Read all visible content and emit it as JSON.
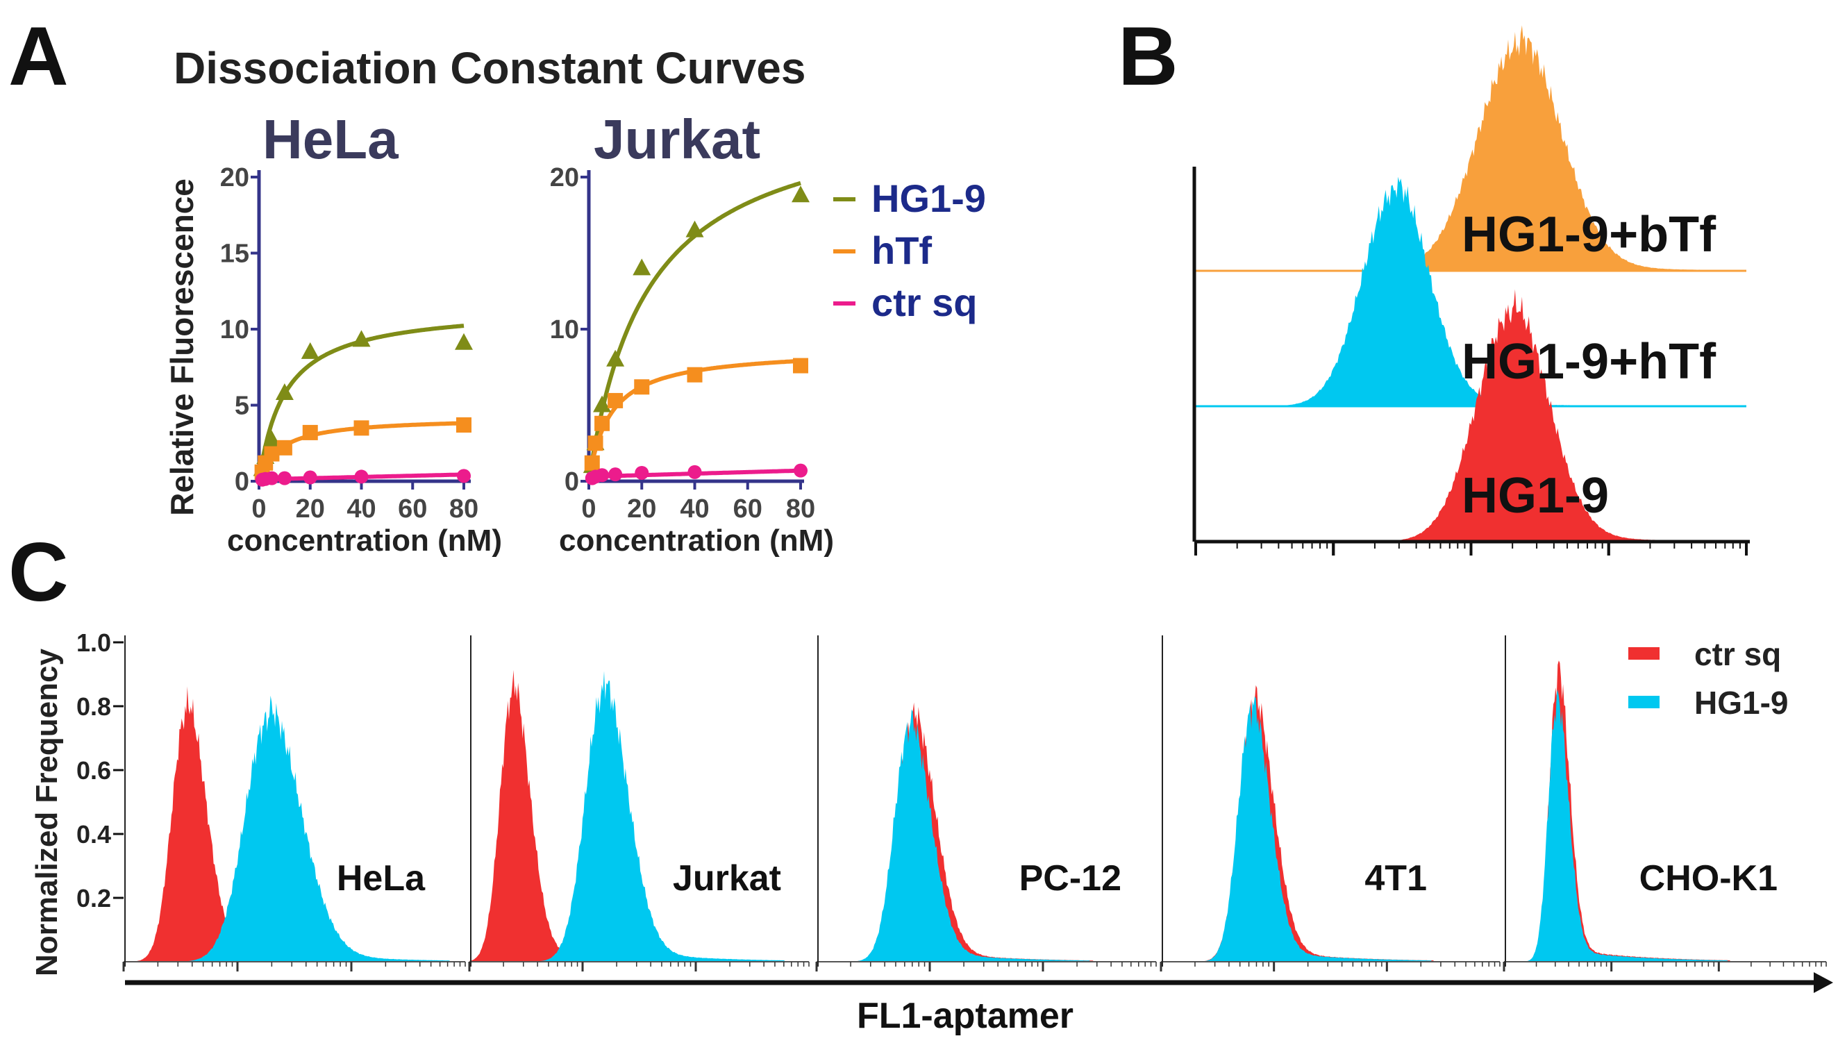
{
  "figure": {
    "panel_letters": [
      "A",
      "B",
      "C"
    ],
    "colors": {
      "hg19": "#7f8c17",
      "htf": "#f58e1e",
      "ctr": "#ec1c8c",
      "legend_text": "#1c2a8a",
      "title_dark": "#3a3a5c",
      "axis_blue": "#34348a",
      "hist_orange": "#f8a03c",
      "hist_cyan": "#00c8f0",
      "hist_red": "#f03030"
    }
  },
  "chart_data": [
    {
      "id": "A",
      "type": "line",
      "title": "Dissociation Constant Curves",
      "ylabel": "Relative Fluorescence",
      "legend": [
        "HG1-9",
        "hTf",
        "ctr sq"
      ],
      "legend_position": "right",
      "subplots": [
        {
          "name": "HeLa",
          "xlabel": "concentration (nM)",
          "xlim": [
            0,
            80
          ],
          "ylim": [
            0,
            20
          ],
          "xticks": [
            0,
            20,
            40,
            60,
            80
          ],
          "yticks": [
            0,
            5,
            10,
            15,
            20
          ],
          "series": [
            {
              "name": "HG1-9",
              "marker": "triangle",
              "x": [
                1.25,
                2.5,
                5,
                10,
                20,
                40,
                80
              ],
              "y": [
                0.8,
                1.6,
                2.7,
                5.8,
                8.5,
                9.3,
                9.1
              ],
              "fit": {
                "bmax": 11.5,
                "kd": 10
              }
            },
            {
              "name": "hTf",
              "marker": "square",
              "x": [
                1.25,
                2.5,
                5,
                10,
                20,
                40,
                80
              ],
              "y": [
                0.6,
                1.2,
                1.8,
                2.2,
                3.2,
                3.5,
                3.7
              ],
              "fit": {
                "bmax": 4.2,
                "kd": 8
              }
            },
            {
              "name": "ctr sq",
              "marker": "circle",
              "x": [
                1.25,
                2.5,
                5,
                10,
                20,
                40,
                80
              ],
              "y": [
                0.1,
                0.15,
                0.2,
                0.2,
                0.25,
                0.3,
                0.35
              ],
              "fit": {
                "slope": 0.004,
                "intercept": 0.12
              }
            }
          ]
        },
        {
          "name": "Jurkat",
          "xlabel": "concentration (nM)",
          "xlim": [
            0,
            80
          ],
          "ylim": [
            0,
            20
          ],
          "xticks": [
            0,
            20,
            40,
            60,
            80
          ],
          "yticks": [
            0,
            10,
            20
          ],
          "series": [
            {
              "name": "HG1-9",
              "marker": "triangle",
              "x": [
                1.25,
                2.5,
                5,
                10,
                20,
                40,
                80
              ],
              "y": [
                1.0,
                2.5,
                5.0,
                8.0,
                14.0,
                16.5,
                18.8
              ],
              "fit": {
                "bmax": 25,
                "kd": 22
              }
            },
            {
              "name": "hTf",
              "marker": "square",
              "x": [
                1.25,
                2.5,
                5,
                10,
                20,
                40,
                80
              ],
              "y": [
                1.2,
                2.5,
                3.8,
                5.3,
                6.2,
                7.0,
                7.6
              ],
              "fit": {
                "bmax": 8.7,
                "kd": 8
              }
            },
            {
              "name": "ctr sq",
              "marker": "circle",
              "x": [
                1.25,
                2.5,
                5,
                10,
                20,
                40,
                80
              ],
              "y": [
                0.2,
                0.3,
                0.4,
                0.45,
                0.55,
                0.6,
                0.7
              ],
              "fit": {
                "slope": 0.005,
                "intercept": 0.3
              }
            }
          ]
        }
      ]
    },
    {
      "id": "B",
      "type": "area",
      "xscale": "log",
      "curves": [
        {
          "label": "HG1-9+bTf",
          "color_key": "hist_orange",
          "peak_log": 2.35,
          "width": 0.3,
          "height": 1.0
        },
        {
          "label": "HG1-9+hTf",
          "color_key": "hist_cyan",
          "peak_log": 1.45,
          "width": 0.24,
          "height": 1.0
        },
        {
          "label": "HG1-9",
          "color_key": "hist_red",
          "peak_log": 2.3,
          "width": 0.26,
          "height": 1.0
        }
      ]
    },
    {
      "id": "C",
      "type": "area",
      "ylabel": "Normalized Frequency",
      "xlabel": "FL1-aptamer",
      "ylim": [
        0,
        1.0
      ],
      "yticks": [
        "0.2",
        "0.4",
        "0.6",
        "0.8",
        "1.0"
      ],
      "legend": [
        "ctr sq",
        "HG1-9"
      ],
      "legend_position": "top-right",
      "subplots": [
        {
          "name": "HeLa",
          "ctr": {
            "peak": 0.55,
            "width": 0.16,
            "height": 0.78
          },
          "hg": {
            "peak": 1.27,
            "width": 0.26,
            "height": 0.76
          }
        },
        {
          "name": "Jurkat",
          "ctr": {
            "peak": 0.38,
            "width": 0.14,
            "height": 0.84
          },
          "hg": {
            "peak": 1.18,
            "width": 0.2,
            "height": 0.84
          }
        },
        {
          "name": "PC-12",
          "ctr": {
            "peak": 0.85,
            "width": 0.18,
            "height": 0.75
          },
          "hg": {
            "peak": 0.82,
            "width": 0.17,
            "height": 0.73
          }
        },
        {
          "name": "4T1",
          "ctr": {
            "peak": 0.82,
            "width": 0.16,
            "height": 0.8
          },
          "hg": {
            "peak": 0.8,
            "width": 0.15,
            "height": 0.78
          }
        },
        {
          "name": "CHO-K1",
          "ctr": {
            "peak": 0.5,
            "width": 0.1,
            "height": 0.89
          },
          "hg": {
            "peak": 0.49,
            "width": 0.1,
            "height": 0.8
          }
        }
      ]
    }
  ]
}
